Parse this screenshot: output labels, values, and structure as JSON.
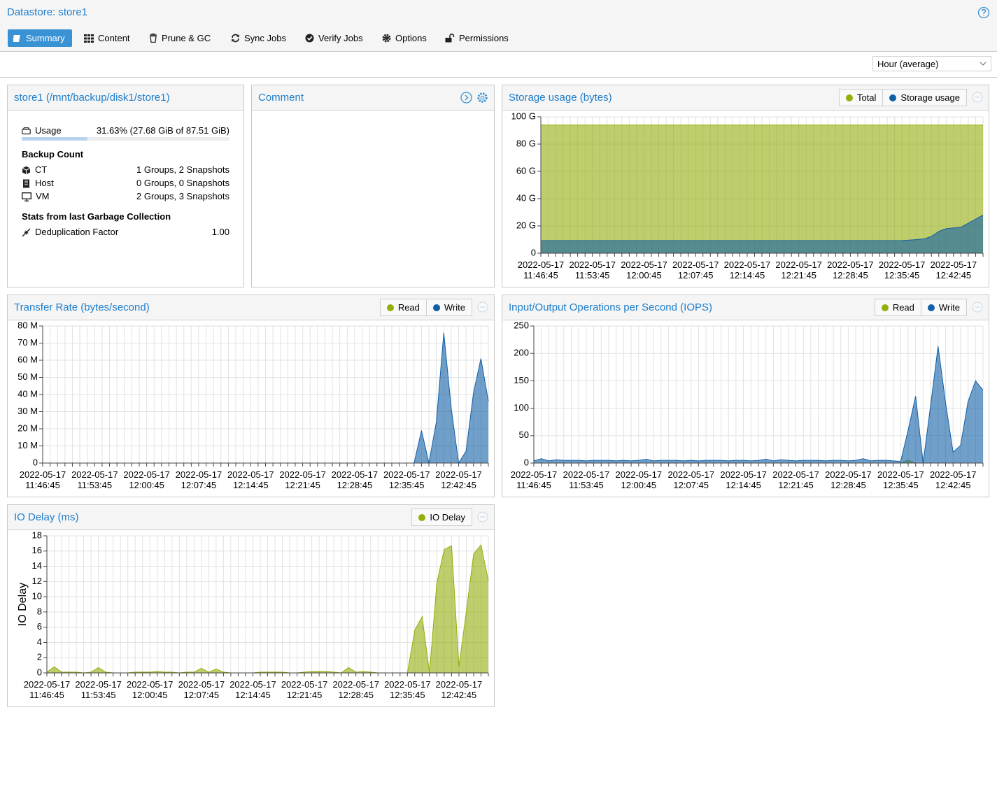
{
  "header": {
    "title": "Datastore: store1"
  },
  "tabs": [
    {
      "label": "Summary",
      "active": true
    },
    {
      "label": "Content"
    },
    {
      "label": "Prune & GC"
    },
    {
      "label": "Sync Jobs"
    },
    {
      "label": "Verify Jobs"
    },
    {
      "label": "Options"
    },
    {
      "label": "Permissions"
    }
  ],
  "timeframe": "Hour (average)",
  "info": {
    "title": "store1 (/mnt/backup/disk1/store1)",
    "usage": {
      "label": "Usage",
      "text": "31.63% (27.68 GiB of 87.51 GiB)",
      "percent": 31.63
    },
    "backup_count": {
      "heading": "Backup Count",
      "rows": [
        {
          "label": "CT",
          "value": "1 Groups, 2 Snapshots"
        },
        {
          "label": "Host",
          "value": "0 Groups, 0 Snapshots"
        },
        {
          "label": "VM",
          "value": "2 Groups, 3 Snapshots"
        }
      ]
    },
    "gc": {
      "heading": "Stats from last Garbage Collection",
      "rows": [
        {
          "label": "Deduplication Factor",
          "value": "1.00"
        }
      ]
    }
  },
  "comment": {
    "title": "Comment"
  },
  "chart_data": [
    {
      "type": "area",
      "title": "Storage usage (bytes)",
      "categories": [
        "2022-05-17 11:46:45",
        null,
        null,
        null,
        null,
        null,
        null,
        "2022-05-17 11:53:45",
        null,
        null,
        null,
        null,
        null,
        null,
        "2022-05-17 12:00:45",
        null,
        null,
        null,
        null,
        null,
        null,
        "2022-05-17 12:07:45",
        null,
        null,
        null,
        null,
        null,
        null,
        "2022-05-17 12:14:45",
        null,
        null,
        null,
        null,
        null,
        null,
        "2022-05-17 12:21:45",
        null,
        null,
        null,
        null,
        null,
        null,
        "2022-05-17 12:28:45",
        null,
        null,
        null,
        null,
        null,
        null,
        "2022-05-17 12:35:45",
        null,
        null,
        null,
        null,
        null,
        null,
        "2022-05-17 12:42:45",
        null,
        null,
        null,
        null
      ],
      "series": [
        {
          "name": "Total",
          "color": "#94ae0a",
          "values": [
            94,
            94,
            94,
            94,
            94,
            94,
            94,
            94,
            94,
            94,
            94,
            94,
            94,
            94,
            94,
            94,
            94,
            94,
            94,
            94,
            94,
            94,
            94,
            94,
            94,
            94,
            94,
            94,
            94,
            94,
            94,
            94,
            94,
            94,
            94,
            94,
            94,
            94,
            94,
            94,
            94,
            94,
            94,
            94,
            94,
            94,
            94,
            94,
            94,
            94,
            94,
            94,
            94,
            94,
            94,
            94,
            94,
            94,
            94,
            94,
            94
          ]
        },
        {
          "name": "Storage usage",
          "color": "#115fa6",
          "values": [
            9.2,
            9.2,
            9.2,
            9.2,
            9.2,
            9.2,
            9.2,
            9.2,
            9.2,
            9.2,
            9.2,
            9.2,
            9.2,
            9.2,
            9.2,
            9.2,
            9.2,
            9.2,
            9.2,
            9.2,
            9.2,
            9.2,
            9.2,
            9.2,
            9.2,
            9.2,
            9.2,
            9.2,
            9.2,
            9.2,
            9.2,
            9.2,
            9.2,
            9.2,
            9.2,
            9.2,
            9.2,
            9.2,
            9.2,
            9.2,
            9.2,
            9.2,
            9.2,
            9.2,
            9.2,
            9.2,
            9.2,
            9.2,
            9.2,
            9.3,
            9.6,
            10,
            10.5,
            12.3,
            16,
            18,
            18.5,
            19,
            22,
            25,
            28
          ]
        }
      ],
      "ylim": [
        0,
        100
      ],
      "yticks": [
        0,
        {
          "value": 20,
          "label": "20 G"
        },
        {
          "value": 40,
          "label": "40 G"
        },
        {
          "value": 60,
          "label": "60 G"
        },
        {
          "value": 80,
          "label": "80 G"
        },
        {
          "value": 100,
          "label": "100 G"
        }
      ],
      "grid": true
    },
    {
      "type": "area",
      "title": "Transfer Rate (bytes/second)",
      "categories": [
        "2022-05-17 11:46:45",
        null,
        null,
        null,
        null,
        null,
        null,
        "2022-05-17 11:53:45",
        null,
        null,
        null,
        null,
        null,
        null,
        "2022-05-17 12:00:45",
        null,
        null,
        null,
        null,
        null,
        null,
        "2022-05-17 12:07:45",
        null,
        null,
        null,
        null,
        null,
        null,
        "2022-05-17 12:14:45",
        null,
        null,
        null,
        null,
        null,
        null,
        "2022-05-17 12:21:45",
        null,
        null,
        null,
        null,
        null,
        null,
        "2022-05-17 12:28:45",
        null,
        null,
        null,
        null,
        null,
        null,
        "2022-05-17 12:35:45",
        null,
        null,
        null,
        null,
        null,
        null,
        "2022-05-17 12:42:45",
        null,
        null,
        null,
        null
      ],
      "series": [
        {
          "name": "Read",
          "color": "#94ae0a",
          "values": [
            0,
            0,
            0,
            0,
            0,
            0,
            0,
            0,
            0,
            0,
            0,
            0,
            0,
            0,
            0,
            0,
            0,
            0,
            0,
            0,
            0,
            0,
            0,
            0,
            0,
            0,
            0,
            0,
            0,
            0,
            0,
            0,
            0,
            0,
            0,
            0,
            0,
            0,
            0,
            0,
            0,
            0,
            0,
            0,
            0,
            0,
            0,
            0,
            0,
            0,
            0,
            0,
            0,
            0,
            0,
            0,
            0,
            0,
            0,
            0,
            0
          ]
        },
        {
          "name": "Write",
          "color": "#115fa6",
          "values": [
            0,
            0,
            0,
            0,
            0,
            0,
            0,
            0,
            0,
            0,
            0,
            0,
            0,
            0,
            0,
            0,
            0,
            0,
            0,
            0,
            0,
            0,
            0,
            0,
            0,
            0,
            0,
            0,
            0,
            0,
            0,
            0,
            0,
            0,
            0,
            0,
            0,
            0,
            0,
            0,
            0,
            0,
            0,
            0,
            0,
            0,
            0,
            0,
            0,
            0,
            0,
            19,
            0,
            24,
            76,
            32,
            0,
            7,
            41,
            61,
            36
          ]
        }
      ],
      "ylim": [
        0,
        80
      ],
      "yticks": [
        0,
        {
          "value": 10,
          "label": "10 M"
        },
        {
          "value": 20,
          "label": "20 M"
        },
        {
          "value": 30,
          "label": "30 M"
        },
        {
          "value": 40,
          "label": "40 M"
        },
        {
          "value": 50,
          "label": "50 M"
        },
        {
          "value": 60,
          "label": "60 M"
        },
        {
          "value": 70,
          "label": "70 M"
        },
        {
          "value": 80,
          "label": "80 M"
        }
      ],
      "grid": true
    },
    {
      "type": "area",
      "title": "Input/Output Operations per Second (IOPS)",
      "categories": [
        "2022-05-17 11:46:45",
        null,
        null,
        null,
        null,
        null,
        null,
        "2022-05-17 11:53:45",
        null,
        null,
        null,
        null,
        null,
        null,
        "2022-05-17 12:00:45",
        null,
        null,
        null,
        null,
        null,
        null,
        "2022-05-17 12:07:45",
        null,
        null,
        null,
        null,
        null,
        null,
        "2022-05-17 12:14:45",
        null,
        null,
        null,
        null,
        null,
        null,
        "2022-05-17 12:21:45",
        null,
        null,
        null,
        null,
        null,
        null,
        "2022-05-17 12:28:45",
        null,
        null,
        null,
        null,
        null,
        null,
        "2022-05-17 12:35:45",
        null,
        null,
        null,
        null,
        null,
        null,
        "2022-05-17 12:42:45",
        null,
        null,
        null,
        null
      ],
      "series": [
        {
          "name": "Read",
          "color": "#94ae0a",
          "values": [
            0,
            0,
            0,
            0,
            0,
            0,
            0,
            0,
            0,
            0,
            0,
            0,
            0,
            0,
            0,
            0,
            0,
            0,
            0,
            0,
            0,
            0,
            0,
            0,
            0,
            0,
            0,
            0,
            0,
            0,
            0,
            0,
            0,
            0,
            0,
            0,
            0,
            0,
            0,
            0,
            0,
            0,
            0,
            0,
            0,
            0,
            0,
            0,
            0,
            0,
            5,
            0,
            0,
            0,
            0,
            0,
            0,
            0,
            0,
            0,
            0
          ]
        },
        {
          "name": "Write",
          "color": "#115fa6",
          "values": [
            4,
            8,
            4,
            6,
            5,
            5,
            5,
            4,
            5,
            5,
            5,
            4,
            5,
            4,
            5,
            7,
            4,
            5,
            5,
            5,
            4,
            5,
            4,
            5,
            5,
            5,
            4,
            5,
            5,
            4,
            5,
            7,
            4,
            6,
            5,
            4,
            5,
            5,
            5,
            4,
            5,
            5,
            4,
            5,
            8,
            4,
            5,
            5,
            4,
            3,
            60,
            122,
            0,
            105,
            213,
            110,
            20,
            32,
            112,
            150,
            133
          ]
        }
      ],
      "ylim": [
        0,
        250
      ],
      "yticks": [
        0,
        50,
        100,
        150,
        200,
        250
      ],
      "grid": true
    },
    {
      "type": "area",
      "title": "IO Delay (ms)",
      "y_label": "IO Delay",
      "categories": [
        "2022-05-17 11:46:45",
        null,
        null,
        null,
        null,
        null,
        null,
        "2022-05-17 11:53:45",
        null,
        null,
        null,
        null,
        null,
        null,
        "2022-05-17 12:00:45",
        null,
        null,
        null,
        null,
        null,
        null,
        "2022-05-17 12:07:45",
        null,
        null,
        null,
        null,
        null,
        null,
        "2022-05-17 12:14:45",
        null,
        null,
        null,
        null,
        null,
        null,
        "2022-05-17 12:21:45",
        null,
        null,
        null,
        null,
        null,
        null,
        "2022-05-17 12:28:45",
        null,
        null,
        null,
        null,
        null,
        null,
        "2022-05-17 12:35:45",
        null,
        null,
        null,
        null,
        null,
        null,
        "2022-05-17 12:42:45",
        null,
        null,
        null,
        null
      ],
      "series": [
        {
          "name": "IO Delay",
          "color": "#94ae0a",
          "values": [
            0.1,
            0.8,
            0.1,
            0.1,
            0.1,
            0,
            0.1,
            0.7,
            0.1,
            0,
            0,
            0,
            0.1,
            0.1,
            0.1,
            0.2,
            0.1,
            0.1,
            0,
            0.1,
            0.1,
            0.6,
            0.1,
            0.5,
            0.1,
            0,
            0,
            0,
            0,
            0.1,
            0.1,
            0.1,
            0.1,
            0,
            0,
            0.1,
            0.2,
            0.2,
            0.2,
            0.1,
            0,
            0.7,
            0.1,
            0.2,
            0.1,
            0,
            0,
            0,
            0,
            0,
            5.6,
            7.4,
            0,
            11.8,
            16.2,
            16.7,
            0.8,
            8,
            15.6,
            16.8,
            12.1
          ]
        }
      ],
      "ylim": [
        0,
        18
      ],
      "yticks": [
        0,
        2,
        4,
        6,
        8,
        10,
        12,
        14,
        16,
        18
      ],
      "grid": true
    }
  ]
}
